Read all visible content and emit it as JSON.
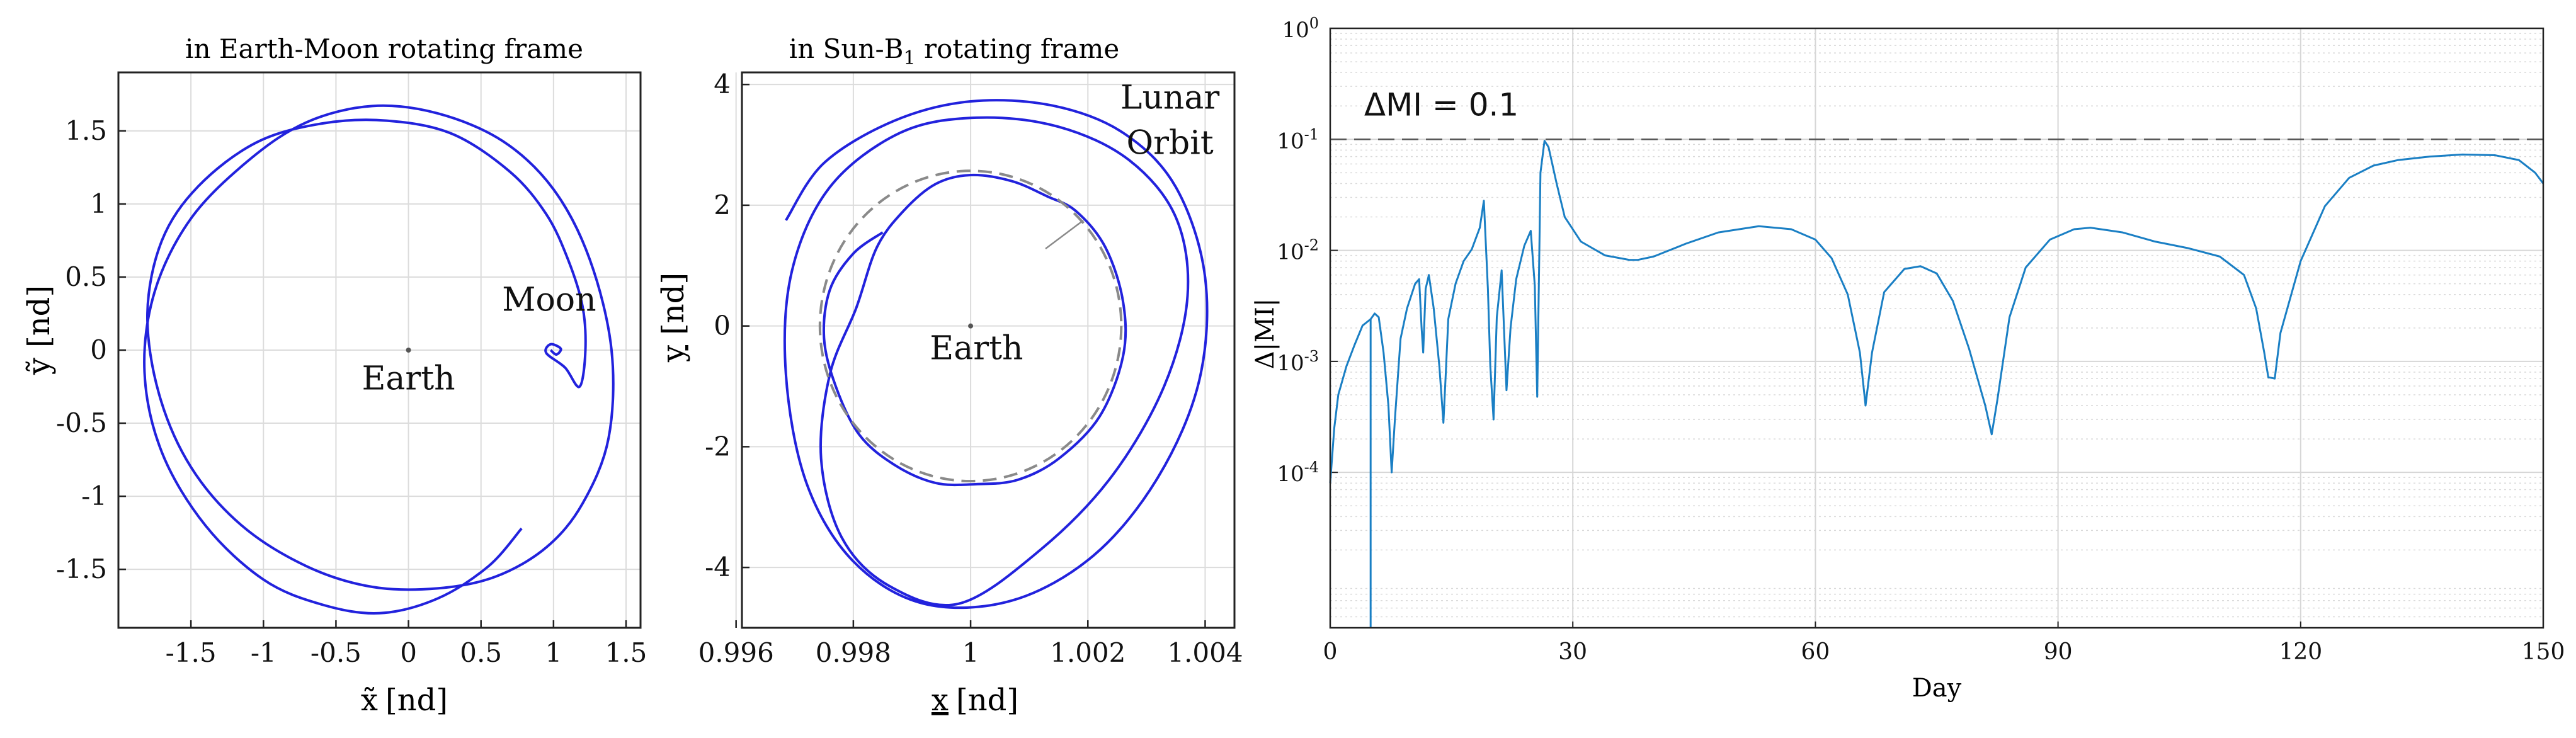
{
  "chart_data": [
    {
      "id": "em",
      "type": "line",
      "title": "in Earth-Moon rotating frame",
      "xlabel_var": "x̃",
      "ylabel_var": "ỹ",
      "unit": "[nd]",
      "xlim": [
        -2.0,
        1.6
      ],
      "ylim": [
        -1.9,
        1.9
      ],
      "xticks": [
        -1.5,
        -1,
        -0.5,
        0,
        0.5,
        1,
        1.5
      ],
      "xtick_labels": [
        "-1.5",
        "-1",
        "-0.5",
        "0",
        "0.5",
        "1",
        "1.5"
      ],
      "yticks": [
        -1.5,
        -1,
        -0.5,
        0,
        0.5,
        1,
        1.5
      ],
      "ytick_labels": [
        "-1.5",
        "-1",
        "-0.5",
        "0",
        "0.5",
        "1",
        "1.5"
      ],
      "grid": true,
      "annotations": [
        {
          "text": "Earth",
          "x": 0,
          "y": -0.27
        },
        {
          "text": "Moon",
          "x": 0.97,
          "y": 0.27
        }
      ],
      "series": [
        {
          "name": "trajectory",
          "color": "#2222dd",
          "x": [
            0.78,
            0.55,
            0.2,
            -0.2,
            -0.6,
            -1.0,
            -1.4,
            -1.7,
            -1.82,
            -1.75,
            -1.5,
            -1.1,
            -0.7,
            -0.25,
            0.2,
            0.65,
            1.0,
            1.25,
            1.4,
            1.38,
            1.2,
            0.95,
            0.6,
            0.2,
            -0.25,
            -0.7,
            -1.15,
            -1.5,
            -1.72,
            -1.8,
            -1.7,
            -1.45,
            -1.05,
            -0.6,
            -0.15,
            0.3,
            0.7,
            0.95,
            1.1,
            1.2,
            1.22,
            1.18,
            1.08,
            0.95,
            0.98,
            1.05,
            1.02,
            0.98
          ],
          "y": [
            -1.22,
            -1.48,
            -1.7,
            -1.8,
            -1.74,
            -1.57,
            -1.2,
            -0.7,
            -0.15,
            0.4,
            0.9,
            1.3,
            1.56,
            1.67,
            1.62,
            1.43,
            1.1,
            0.62,
            0.0,
            -0.6,
            -1.05,
            -1.35,
            -1.55,
            -1.63,
            -1.62,
            -1.48,
            -1.2,
            -0.8,
            -0.3,
            0.25,
            0.75,
            1.12,
            1.42,
            1.55,
            1.57,
            1.48,
            1.22,
            0.93,
            0.62,
            0.3,
            0.0,
            -0.25,
            -0.12,
            -0.02,
            0.04,
            0.01,
            -0.03,
            0.0
          ]
        }
      ]
    },
    {
      "id": "sun",
      "type": "line",
      "title": "in Sun-B",
      "title_sub": "1",
      "title_tail": " rotating frame",
      "xlabel_var": "x",
      "ylabel_var": "y",
      "unit": "[nd]",
      "xlim": [
        0.9961,
        1.0045
      ],
      "ylim": [
        -5.0,
        4.2
      ],
      "xticks": [
        0.996,
        0.998,
        1.0,
        1.002,
        1.004
      ],
      "xtick_labels": [
        "0.996",
        "0.998",
        "1",
        "1.002",
        "1.004"
      ],
      "yticks": [
        -4,
        -2,
        0,
        2,
        4
      ],
      "ytick_labels": [
        "-4",
        "-2",
        "0",
        "2",
        "4"
      ],
      "grid": true,
      "annotations": [
        {
          "text": "Earth",
          "x": 1.0001,
          "y": -0.55
        },
        {
          "text": "Lunar",
          "x": 1.0034,
          "y": 3.6
        },
        {
          "text": "Orbit",
          "x": 1.0034,
          "y": 2.85
        }
      ],
      "series": [
        {
          "name": "trajectory",
          "color": "#2222dd",
          "x": [
            0.99685,
            0.9975,
            0.9987,
            1.0,
            1.0014,
            1.0026,
            1.0035,
            1.004,
            1.0039,
            1.0032,
            1.0021,
            1.0007,
            0.9992,
            0.998,
            0.9972,
            0.99685,
            0.99695,
            0.9976,
            0.9988,
            1.0001,
            1.0015,
            1.0027,
            1.0035,
            1.0037,
            1.0033,
            1.0024,
            1.0012,
            0.9998,
            0.9986,
            0.9978,
            0.99745,
            0.9976,
            0.99805,
            0.9984,
            0.99885,
            0.9994,
            1.0,
            1.0007,
            1.0013,
            1.0018,
            1.0023,
            1.0026,
            1.0026,
            1.0022,
            1.0015,
            1.0008,
            1.0001,
            0.9994,
            0.9987,
            0.9981,
            0.9977,
            0.9975,
            0.9976,
            0.998,
            0.9985
          ],
          "y": [
            1.75,
            2.7,
            3.4,
            3.72,
            3.65,
            3.2,
            2.3,
            0.8,
            -0.9,
            -2.5,
            -3.8,
            -4.55,
            -4.6,
            -3.9,
            -2.6,
            -0.8,
            0.9,
            2.3,
            3.2,
            3.45,
            3.3,
            2.75,
            1.8,
            0.5,
            -1.0,
            -2.5,
            -3.7,
            -4.6,
            -4.3,
            -3.5,
            -2.2,
            -0.8,
            0.3,
            1.3,
            1.9,
            2.35,
            2.5,
            2.4,
            2.15,
            1.9,
            1.3,
            0.4,
            -0.5,
            -1.5,
            -2.2,
            -2.55,
            -2.62,
            -2.6,
            -2.3,
            -1.8,
            -1.0,
            -0.2,
            0.6,
            1.2,
            1.55
          ]
        },
        {
          "name": "Lunar Orbit",
          "color": "#8a8a8a",
          "dashed": true,
          "circle": {
            "cx": 1.0,
            "cy": 0.0,
            "rx": 0.00257,
            "ry": 2.57
          }
        }
      ]
    },
    {
      "id": "mi",
      "type": "line",
      "xlabel": "Day",
      "ylabel": "Δ|MI|",
      "xlim": [
        0,
        150
      ],
      "ylim_log10": [
        -5.4,
        0
      ],
      "xticks": [
        0,
        30,
        60,
        90,
        120,
        150
      ],
      "xtick_labels": [
        "0",
        "30",
        "60",
        "90",
        "120",
        "150"
      ],
      "ytick_exponents": [
        -4,
        -3,
        -2,
        -1,
        0
      ],
      "ytick_labels": [
        {
          "base": "10",
          "exp": "-4"
        },
        {
          "base": "10",
          "exp": "-3"
        },
        {
          "base": "10",
          "exp": "-2"
        },
        {
          "base": "10",
          "exp": "-1"
        },
        {
          "base": "10",
          "exp": "0"
        }
      ],
      "grid": true,
      "threshold": {
        "value": 0.1,
        "label": "ΔMI = 0.1",
        "color": "#555555"
      },
      "series": [
        {
          "name": "Δ|MI|",
          "color": "#1a7fc4",
          "x": [
            0,
            0.5,
            1,
            2,
            3,
            4,
            5,
            5.5,
            6,
            6.6,
            7.2,
            7.6,
            8,
            8.7,
            9.5,
            10.5,
            11,
            11.3,
            11.5,
            11.8,
            12.2,
            12.8,
            13.5,
            14,
            14.3,
            14.6,
            15.5,
            16.5,
            17.5,
            18.5,
            19,
            19.5,
            19.8,
            20.2,
            20.6,
            21.2,
            21.5,
            21.8,
            22.3,
            23,
            24,
            24.8,
            25.3,
            25.6,
            26,
            26.5,
            27,
            28,
            29,
            31,
            34,
            37,
            38,
            40,
            44,
            48,
            53,
            57,
            60,
            62,
            64,
            65.5,
            66.2,
            67,
            68.5,
            71,
            73,
            75,
            77,
            79,
            81,
            81.8,
            82.5,
            84,
            86,
            89,
            92,
            94,
            98,
            102,
            106,
            110,
            113,
            114.5,
            115.5,
            116,
            116.8,
            117.5,
            120,
            123,
            126,
            129,
            132,
            136,
            140,
            144,
            147,
            149,
            150
          ],
          "y": [
            8e-05,
            0.00025,
            0.0005,
            0.0009,
            0.0014,
            0.0021,
            0.0024,
            0.0027,
            0.0025,
            0.0012,
            0.0004,
            0.0001,
            0.0003,
            0.0016,
            0.003,
            0.005,
            0.0055,
            0.002,
            0.0012,
            0.0045,
            0.006,
            0.003,
            0.0009,
            0.00028,
            0.0008,
            0.0024,
            0.005,
            0.008,
            0.0102,
            0.016,
            0.028,
            0.0045,
            0.0009,
            0.0003,
            0.0025,
            0.0066,
            0.0019,
            0.00055,
            0.002,
            0.0055,
            0.011,
            0.015,
            0.0048,
            0.00048,
            0.05,
            0.097,
            0.085,
            0.04,
            0.02,
            0.012,
            0.009,
            0.0082,
            0.0082,
            0.0088,
            0.0115,
            0.0145,
            0.0165,
            0.0155,
            0.0125,
            0.0085,
            0.004,
            0.0012,
            0.0004,
            0.0012,
            0.0042,
            0.0068,
            0.0072,
            0.0062,
            0.0035,
            0.0013,
            0.0004,
            0.00022,
            0.00045,
            0.0025,
            0.007,
            0.0125,
            0.0155,
            0.016,
            0.0145,
            0.012,
            0.0105,
            0.0088,
            0.006,
            0.003,
            0.0012,
            0.00072,
            0.0007,
            0.0018,
            0.008,
            0.025,
            0.045,
            0.058,
            0.065,
            0.07,
            0.073,
            0.072,
            0.065,
            0.05,
            0.04
          ]
        },
        {
          "name": "Δ|MI| vertical drop",
          "color": "#1a7fc4",
          "x": [
            5,
            5
          ],
          "y": [
            0.0024,
            4e-06
          ]
        }
      ]
    }
  ]
}
